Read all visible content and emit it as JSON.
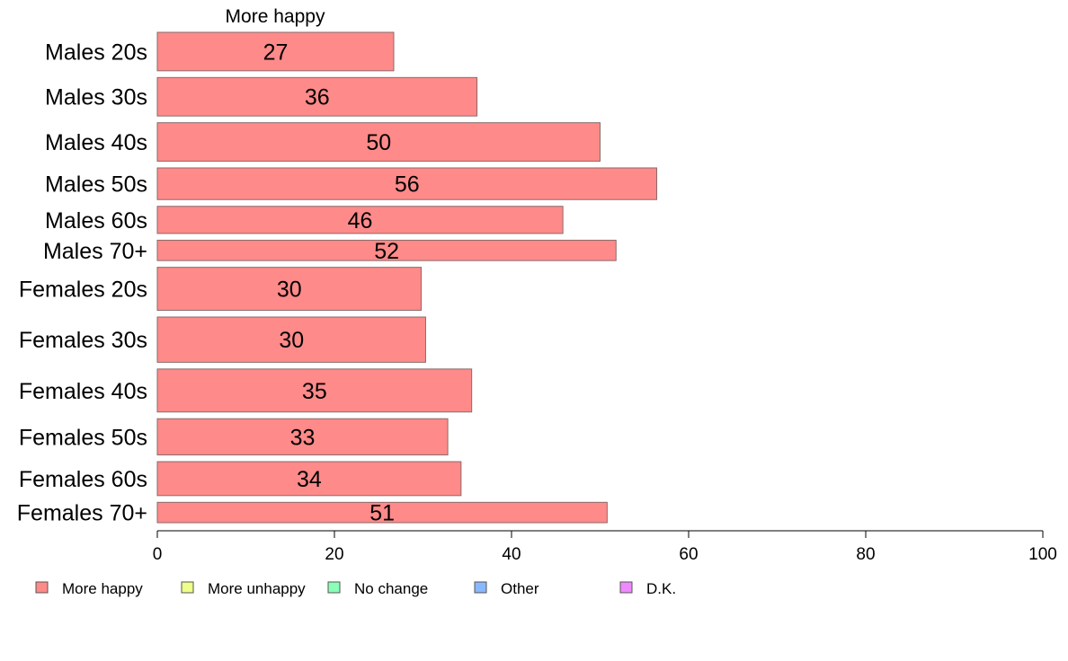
{
  "chart_data": {
    "type": "bar",
    "orientation": "horizontal",
    "stacked": true,
    "header_label": "More happy",
    "categories": [
      "Males 20s",
      "Males 30s",
      "Males 40s",
      "Males 50s",
      "Males 60s",
      "Males 70+",
      "Females 20s",
      "Females 30s",
      "Females 40s",
      "Females 50s",
      "Females 60s",
      "Females 70+"
    ],
    "bar_weights": [
      0.85,
      0.85,
      0.85,
      0.7,
      0.6,
      0.45,
      0.95,
      1.0,
      0.95,
      0.8,
      0.75,
      0.45
    ],
    "series": [
      {
        "name": "More happy",
        "color": "#ff8a8a",
        "values": [
          26.7,
          36.1,
          50.0,
          56.4,
          45.8,
          51.8,
          29.8,
          30.3,
          35.5,
          32.8,
          34.3,
          50.8
        ],
        "labels": [
          "27",
          "36",
          "50",
          "56",
          "46",
          "52",
          "30",
          "30",
          "35",
          "33",
          "34",
          "51"
        ]
      }
    ],
    "legend": [
      {
        "name": "More happy",
        "color": "#ff8a8a"
      },
      {
        "name": "More unhappy",
        "color": "#eeff8a"
      },
      {
        "name": "No change",
        "color": "#8affb8"
      },
      {
        "name": "Other",
        "color": "#8ab8ff"
      },
      {
        "name": "D.K.",
        "color": "#ee8aff"
      }
    ],
    "xlim": [
      0,
      100
    ],
    "xticks": [
      "0",
      "20",
      "40",
      "60",
      "80",
      "100"
    ],
    "grid": false,
    "legend_position": "bottom"
  }
}
